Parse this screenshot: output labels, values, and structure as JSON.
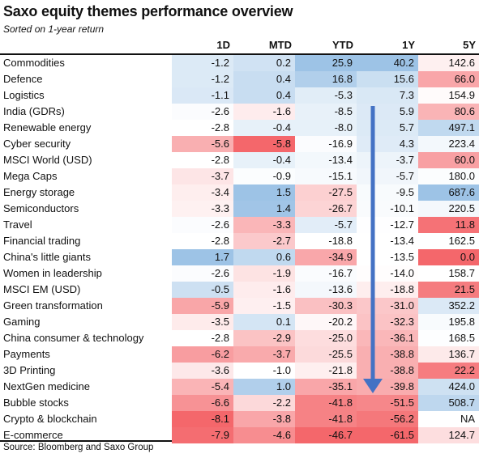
{
  "title": "Saxo equity themes performance overview",
  "subtitle": "Sorted on 1-year return",
  "source": "Source: Bloomberg and Saxo Group",
  "chart_data": {
    "type": "table",
    "columns": [
      "1D",
      "MTD",
      "YTD",
      "1Y",
      "5Y"
    ],
    "rows": [
      {
        "name": "Commodities",
        "values": [
          -1.2,
          0.2,
          25.9,
          40.2,
          142.6
        ]
      },
      {
        "name": "Defence",
        "values": [
          -1.2,
          0.4,
          16.8,
          15.6,
          66.0
        ]
      },
      {
        "name": "Logistics",
        "values": [
          -1.1,
          0.4,
          -5.3,
          7.3,
          154.9
        ]
      },
      {
        "name": "India (GDRs)",
        "values": [
          -2.6,
          -1.6,
          -8.5,
          5.9,
          80.6
        ]
      },
      {
        "name": "Renewable energy",
        "values": [
          -2.8,
          -0.4,
          -8.0,
          5.7,
          497.1
        ]
      },
      {
        "name": "Cyber security",
        "values": [
          -5.6,
          -5.8,
          -16.9,
          4.3,
          223.4
        ]
      },
      {
        "name": "MSCI World (USD)",
        "values": [
          -2.8,
          -0.4,
          -13.4,
          -3.7,
          60.0
        ]
      },
      {
        "name": "Mega Caps",
        "values": [
          -3.7,
          -0.9,
          -15.1,
          -5.7,
          180.0
        ]
      },
      {
        "name": "Energy storage",
        "values": [
          -3.4,
          1.5,
          -27.5,
          -9.5,
          687.6
        ]
      },
      {
        "name": "Semiconductors",
        "values": [
          -3.3,
          1.4,
          -26.7,
          -10.1,
          220.5
        ]
      },
      {
        "name": "Travel",
        "values": [
          -2.6,
          -3.3,
          -5.7,
          -12.7,
          11.8
        ]
      },
      {
        "name": "Financial trading",
        "values": [
          -2.8,
          -2.7,
          -18.8,
          -13.4,
          162.5
        ]
      },
      {
        "name": "China's little giants",
        "values": [
          1.7,
          0.6,
          -34.9,
          -13.5,
          0.0
        ]
      },
      {
        "name": "Women in leadership",
        "values": [
          -2.6,
          -1.9,
          -16.7,
          -14.0,
          158.7
        ]
      },
      {
        "name": "MSCI EM (USD)",
        "values": [
          -0.5,
          -1.6,
          -13.6,
          -18.8,
          21.5
        ]
      },
      {
        "name": "Green transformation",
        "values": [
          -5.9,
          -1.5,
          -30.3,
          -31.0,
          352.2
        ]
      },
      {
        "name": "Gaming",
        "values": [
          -3.5,
          0.1,
          -20.2,
          -32.3,
          195.8
        ]
      },
      {
        "name": "China consumer & technology",
        "values": [
          -2.8,
          -2.9,
          -25.0,
          -36.1,
          168.5
        ]
      },
      {
        "name": "Payments",
        "values": [
          -6.2,
          -3.7,
          -25.5,
          -38.8,
          136.7
        ]
      },
      {
        "name": "3D Printing",
        "values": [
          -3.6,
          -1.0,
          -21.8,
          -38.8,
          22.2
        ]
      },
      {
        "name": "NextGen medicine",
        "values": [
          -5.4,
          1.0,
          -35.1,
          -39.8,
          424.0
        ]
      },
      {
        "name": "Bubble stocks",
        "values": [
          -6.6,
          -2.2,
          -41.8,
          -51.5,
          508.7
        ]
      },
      {
        "name": "Crypto & blockchain",
        "values": [
          -8.1,
          -3.8,
          -41.8,
          -56.2,
          "NA"
        ]
      },
      {
        "name": "E-commerce",
        "values": [
          -7.9,
          -4.6,
          -46.7,
          -61.5,
          124.7
        ]
      }
    ],
    "display": [
      [
        "-1.2",
        "0.2",
        "25.9",
        "40.2",
        "142.6"
      ],
      [
        "-1.2",
        "0.4",
        "16.8",
        "15.6",
        "66.0"
      ],
      [
        "-1.1",
        "0.4",
        "-5.3",
        "7.3",
        "154.9"
      ],
      [
        "-2.6",
        "-1.6",
        "-8.5",
        "5.9",
        "80.6"
      ],
      [
        "-2.8",
        "-0.4",
        "-8.0",
        "5.7",
        "497.1"
      ],
      [
        "-5.6",
        "-5.8",
        "-16.9",
        "4.3",
        "223.4"
      ],
      [
        "-2.8",
        "-0.4",
        "-13.4",
        "-3.7",
        "60.0"
      ],
      [
        "-3.7",
        "-0.9",
        "-15.1",
        "-5.7",
        "180.0"
      ],
      [
        "-3.4",
        "1.5",
        "-27.5",
        "-9.5",
        "687.6"
      ],
      [
        "-3.3",
        "1.4",
        "-26.7",
        "-10.1",
        "220.5"
      ],
      [
        "-2.6",
        "-3.3",
        "-5.7",
        "-12.7",
        "11.8"
      ],
      [
        "-2.8",
        "-2.7",
        "-18.8",
        "-13.4",
        "162.5"
      ],
      [
        "1.7",
        "0.6",
        "-34.9",
        "-13.5",
        "0.0"
      ],
      [
        "-2.6",
        "-1.9",
        "-16.7",
        "-14.0",
        "158.7"
      ],
      [
        "-0.5",
        "-1.6",
        "-13.6",
        "-18.8",
        "21.5"
      ],
      [
        "-5.9",
        "-1.5",
        "-30.3",
        "-31.0",
        "352.2"
      ],
      [
        "-3.5",
        "0.1",
        "-20.2",
        "-32.3",
        "195.8"
      ],
      [
        "-2.8",
        "-2.9",
        "-25.0",
        "-36.1",
        "168.5"
      ],
      [
        "-6.2",
        "-3.7",
        "-25.5",
        "-38.8",
        "136.7"
      ],
      [
        "-3.6",
        "-1.0",
        "-21.8",
        "-38.8",
        "22.2"
      ],
      [
        "-5.4",
        "1.0",
        "-35.1",
        "-39.8",
        "424.0"
      ],
      [
        "-6.6",
        "-2.2",
        "-41.8",
        "-51.5",
        "508.7"
      ],
      [
        "-8.1",
        "-3.8",
        "-41.8",
        "-56.2",
        "NA"
      ],
      [
        "-7.9",
        "-4.6",
        "-46.7",
        "-61.5",
        "124.7"
      ]
    ]
  },
  "colors": {
    "positive": "#9dc3e6",
    "negative": "#f4676b",
    "neutral": "#ffffff",
    "arrow": "#4472c4"
  }
}
